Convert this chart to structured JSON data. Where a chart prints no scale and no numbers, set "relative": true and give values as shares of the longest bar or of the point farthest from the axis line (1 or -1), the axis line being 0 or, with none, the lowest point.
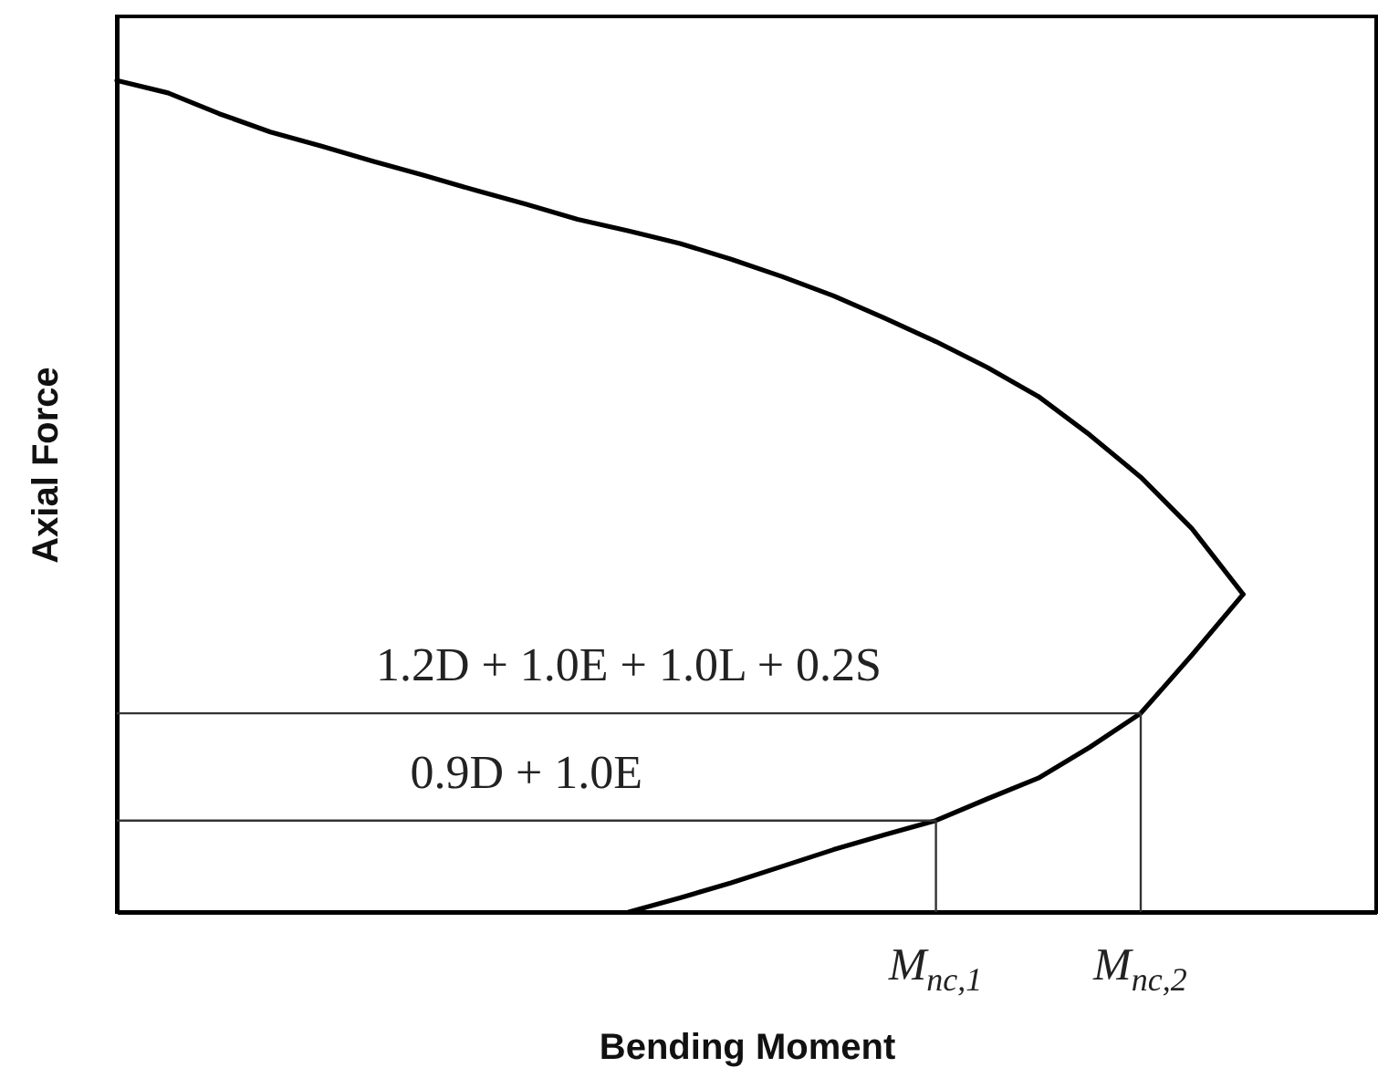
{
  "chart_data": {
    "type": "line",
    "xlabel": "Bending Moment",
    "ylabel": "Axial Force",
    "relative": true,
    "tick_labels": "x",
    "grid": false,
    "categories": [
      null,
      null,
      null,
      null,
      null,
      null,
      null,
      null,
      null,
      null,
      null,
      null,
      null,
      null,
      null,
      null,
      "M$_{nc,1}$",
      null,
      null,
      null,
      "M$_{nc,2}$",
      null,
      null,
      null,
      null
    ],
    "series": [
      {
        "color": "#000000",
        "values": [
          1,
          0.985,
          0.96,
          0.938,
          0.921,
          0.903,
          0.886,
          0.868,
          0.851,
          0.833,
          0.819,
          0.804,
          0.785,
          0.764,
          0.741,
          0.714,
          0.686,
          0.655,
          0.62,
          0.574,
          0.523,
          0.461,
          0.382,
          null,
          null
        ]
      },
      {
        "color": "#000000",
        "values": [
          null,
          null,
          null,
          null,
          null,
          null,
          null,
          null,
          null,
          null,
          0,
          0.017,
          0.035,
          0.055,
          0.075,
          0.093,
          0.11,
          0.136,
          0.161,
          0.198,
          0.239,
          0.309,
          0.382,
          null,
          null
        ]
      }
    ],
    "ref_lines": [
      {
        "axis": "y",
        "value": 0.239,
        "label": "1.2D + 1.0E + 1.0L + 0.2S",
        "color": "#333333"
      },
      {
        "axis": "y",
        "value": 0.11,
        "label": "0.9D + 1.0E",
        "color": "#333333"
      },
      {
        "axis": "x",
        "value": "M$_{nc,1}$",
        "color": "#333333"
      },
      {
        "axis": "x",
        "value": "M$_{nc,2}$",
        "color": "#333333"
      }
    ]
  }
}
